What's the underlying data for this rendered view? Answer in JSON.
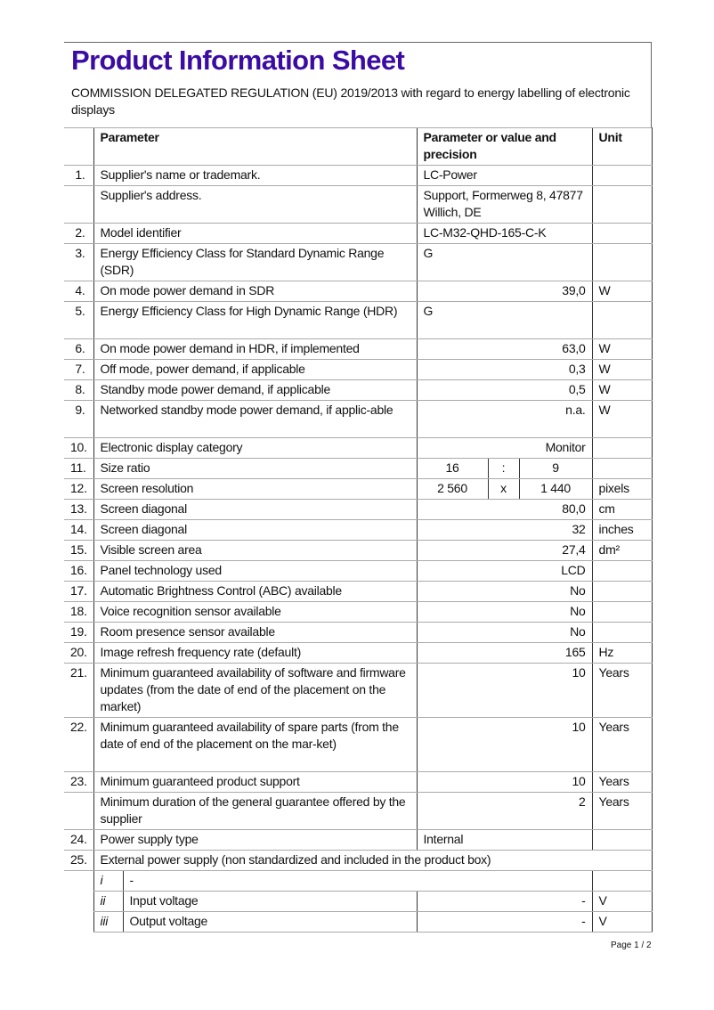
{
  "header": {
    "title": "Product Information Sheet",
    "subtitle": "COMMISSION DELEGATED REGULATION (EU) 2019/2013 with regard to energy labelling of electronic displays",
    "title_color": "#3a0ca3"
  },
  "table": {
    "columns": [
      "",
      "Parameter",
      "Parameter or value and precision",
      "Unit"
    ],
    "rows": [
      {
        "num": "1.",
        "param": "Supplier's name or trademark.",
        "value": "LC-Power",
        "unit": "",
        "align": "left",
        "lines": 1
      },
      {
        "num": "",
        "param": "Supplier's address.",
        "value": "Support, Formerweg 8, 47877 Willich, DE",
        "unit": "",
        "align": "left",
        "lines": 2
      },
      {
        "num": "2.",
        "param": "Model identifier",
        "value": "LC-M32-QHD-165-C-K",
        "unit": "",
        "align": "left",
        "lines": 1
      },
      {
        "num": "3.",
        "param": "Energy Efficiency Class for Standard Dynamic Range (SDR)",
        "value": "G",
        "unit": "",
        "align": "left",
        "lines": 2
      },
      {
        "num": "4.",
        "param": "On mode power demand in SDR",
        "value": "39,0",
        "unit": "W",
        "align": "right",
        "lines": 1
      },
      {
        "num": "5.",
        "param": "Energy Efficiency Class for High Dynamic Range (HDR)",
        "value": "G",
        "unit": "",
        "align": "left",
        "lines": 2
      },
      {
        "num": "6.",
        "param": "On mode power demand in HDR, if implemented",
        "value": "63,0",
        "unit": "W",
        "align": "right",
        "lines": 1
      },
      {
        "num": "7.",
        "param": "Off mode, power demand, if applicable",
        "value": "0,3",
        "unit": "W",
        "align": "right",
        "lines": 1
      },
      {
        "num": "8.",
        "param": "Standby mode power demand, if applicable",
        "value": "0,5",
        "unit": "W",
        "align": "right",
        "lines": 1
      },
      {
        "num": "9.",
        "param": "Networked standby mode power demand, if applic-able",
        "value": "n.a.",
        "unit": "W",
        "align": "right",
        "lines": 2
      },
      {
        "num": "10.",
        "param": "Electronic display category",
        "value": "Monitor",
        "unit": "",
        "align": "right",
        "lines": 1
      },
      {
        "num": "11.",
        "param": "Size ratio",
        "split": [
          "16",
          ":",
          "9"
        ],
        "unit": "",
        "lines": 1
      },
      {
        "num": "12.",
        "param": "Screen resolution",
        "split": [
          "2 560",
          "x",
          "1 440"
        ],
        "unit": "pixels",
        "lines": 1
      },
      {
        "num": "13.",
        "param": "Screen diagonal",
        "value": "80,0",
        "unit": "cm",
        "align": "right",
        "lines": 1
      },
      {
        "num": "14.",
        "param": "Screen diagonal",
        "value": "32",
        "unit": "inches",
        "align": "right",
        "lines": 1
      },
      {
        "num": "15.",
        "param": "Visible screen area",
        "value": "27,4",
        "unit": "dm²",
        "align": "right",
        "lines": 1
      },
      {
        "num": "16.",
        "param": "Panel technology used",
        "value": "LCD",
        "unit": "",
        "align": "right",
        "lines": 1
      },
      {
        "num": "17.",
        "param": "Automatic Brightness Control (ABC) available",
        "value": "No",
        "unit": "",
        "align": "right",
        "lines": 1
      },
      {
        "num": "18.",
        "param": "Voice recognition sensor available",
        "value": "No",
        "unit": "",
        "align": "right",
        "lines": 1
      },
      {
        "num": "19.",
        "param": "Room presence sensor available",
        "value": "No",
        "unit": "",
        "align": "right",
        "lines": 1
      },
      {
        "num": "20.",
        "param": "Image refresh frequency rate (default)",
        "value": "165",
        "unit": "Hz",
        "align": "right",
        "lines": 1
      },
      {
        "num": "21.",
        "param": "Minimum guaranteed availability of software and firmware updates (from the date of end of the placement on the market)",
        "value": "10",
        "unit": "Years",
        "align": "right",
        "lines": 3
      },
      {
        "num": "22.",
        "param": "Minimum guaranteed availability of spare parts (from the date of end of the placement on the mar-ket)",
        "value": "10",
        "unit": "Years",
        "align": "right",
        "lines": 3
      },
      {
        "num": "23.",
        "param": "Minimum guaranteed product support",
        "value": "10",
        "unit": "Years",
        "align": "right",
        "lines": 1
      },
      {
        "num": "",
        "param": "Minimum duration of the general guarantee offered by the supplier",
        "value": "2",
        "unit": "Years",
        "align": "right",
        "lines": 2
      },
      {
        "num": "24.",
        "param": "Power supply type",
        "value": "Internal",
        "unit": "",
        "align": "left",
        "lines": 1
      },
      {
        "num": "25.",
        "param": "External power supply (non standardized and included in the product box)",
        "full": true,
        "lines": 1
      }
    ],
    "subrows": [
      {
        "sub": "i",
        "param": "-",
        "value": "",
        "unit": ""
      },
      {
        "sub": "ii",
        "param": "Input voltage",
        "value": "-",
        "unit": "V"
      },
      {
        "sub": "iii",
        "param": "Output voltage",
        "value": "-",
        "unit": "V"
      }
    ]
  },
  "footer": {
    "page": "Page 1 / 2"
  }
}
